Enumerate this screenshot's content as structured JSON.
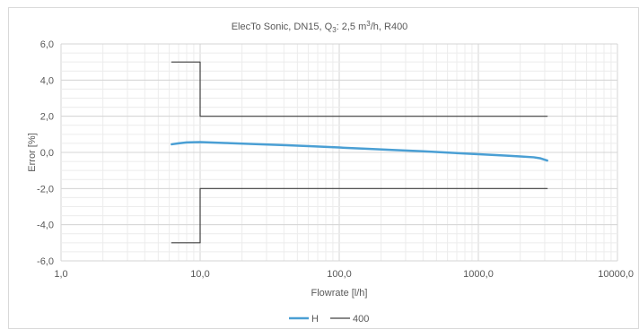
{
  "chart_data": {
    "type": "line",
    "title_main": "ElecTo Sonic, DN15, Q",
    "title_sub": "3",
    "title_mid": ": 2,5 m",
    "title_sup": "3",
    "title_end": "/h, R400",
    "xlabel": "Flowrate [l/h]",
    "ylabel": "Error [%]",
    "x_scale": "log",
    "xlim": [
      1,
      10000
    ],
    "ylim": [
      -6,
      6
    ],
    "x_ticks": [
      1,
      10,
      100,
      1000,
      10000
    ],
    "x_tick_labels": [
      "1,0",
      "10,0",
      "100,0",
      "1000,0",
      "10000,0"
    ],
    "y_ticks": [
      6,
      4,
      2,
      0,
      -2,
      -4,
      -6
    ],
    "y_tick_labels": [
      "6,0",
      "4,0",
      "2,0",
      "0,0",
      "-2,0",
      "-4,0",
      "-6,0"
    ],
    "grid": true,
    "legend_position": "bottom",
    "series": [
      {
        "name": "H",
        "color": "#4a9fd4",
        "x": [
          6.25,
          7,
          8,
          10,
          15,
          25,
          40,
          63,
          100,
          160,
          250,
          400,
          630,
          1000,
          1600,
          2000,
          2500,
          2800,
          3125
        ],
        "y": [
          0.45,
          0.5,
          0.55,
          0.57,
          0.52,
          0.46,
          0.4,
          0.34,
          0.27,
          0.2,
          0.13,
          0.06,
          -0.02,
          -0.1,
          -0.18,
          -0.22,
          -0.27,
          -0.33,
          -0.45
        ]
      },
      {
        "name": "400",
        "color": "#404040",
        "x": [
          6.25,
          10,
          10,
          3125
        ],
        "y": [
          5,
          5,
          2,
          2
        ]
      },
      {
        "name": "400",
        "color": "#404040",
        "x": [
          6.25,
          10,
          10,
          3125
        ],
        "y": [
          -5,
          -5,
          -2,
          -2
        ]
      }
    ],
    "legend": [
      {
        "name": "H",
        "color": "#4a9fd4"
      },
      {
        "name": "400",
        "color": "#404040"
      }
    ]
  }
}
